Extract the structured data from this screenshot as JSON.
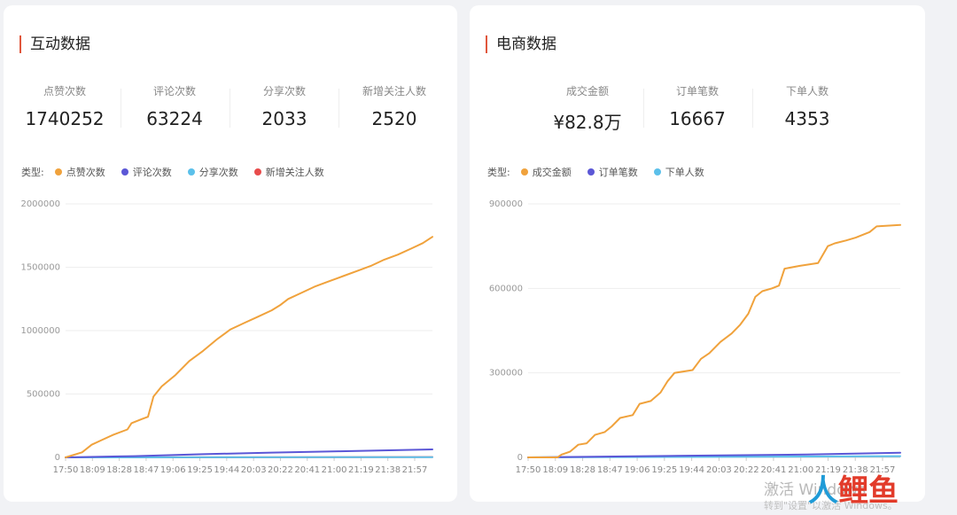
{
  "left_card": {
    "title": "互动数据",
    "stats": [
      {
        "label": "点赞次数",
        "value": "1740252"
      },
      {
        "label": "评论次数",
        "value": "63224"
      },
      {
        "label": "分享次数",
        "value": "2033"
      },
      {
        "label": "新增关注人数",
        "value": "2520"
      }
    ],
    "legend_prefix": "类型:"
  },
  "right_card": {
    "title": "电商数据",
    "stats": [
      {
        "label": "成交金额",
        "value": "¥82.8万"
      },
      {
        "label": "订单笔数",
        "value": "16667"
      },
      {
        "label": "下单人数",
        "value": "4353"
      }
    ],
    "legend_prefix": "类型:"
  },
  "watermark": {
    "line1": "激活 Windows",
    "line2": "转到\"设置\"以激活 Windows。",
    "logo_chars": [
      "人",
      "鲤",
      "鱼"
    ]
  },
  "chart_data": [
    {
      "type": "line",
      "title": "",
      "xlabel": "",
      "ylabel": "",
      "ylim": [
        0,
        2000000
      ],
      "yticks": [
        0,
        500000,
        1000000,
        1500000,
        2000000
      ],
      "x_tick_labels": [
        "17:50",
        "18:09",
        "18:28",
        "18:47",
        "19:06",
        "19:25",
        "19:44",
        "20:03",
        "20:22",
        "20:41",
        "21:00",
        "21:19",
        "21:38",
        "21:57"
      ],
      "x_range_minutes": [
        0,
        267
      ],
      "grid": true,
      "legend_position": "top-left",
      "series": [
        {
          "name": "点赞次数",
          "color": "#f0a23c",
          "points": [
            [
              0,
              0
            ],
            [
              12,
              40000
            ],
            [
              19,
              100000
            ],
            [
              25,
              130000
            ],
            [
              35,
              180000
            ],
            [
              45,
              220000
            ],
            [
              48,
              270000
            ],
            [
              55,
              300000
            ],
            [
              60,
              320000
            ],
            [
              64,
              480000
            ],
            [
              70,
              560000
            ],
            [
              80,
              650000
            ],
            [
              90,
              760000
            ],
            [
              100,
              840000
            ],
            [
              110,
              930000
            ],
            [
              120,
              1010000
            ],
            [
              130,
              1060000
            ],
            [
              140,
              1110000
            ],
            [
              150,
              1160000
            ],
            [
              156,
              1200000
            ],
            [
              162,
              1250000
            ],
            [
              172,
              1300000
            ],
            [
              182,
              1350000
            ],
            [
              192,
              1390000
            ],
            [
              202,
              1430000
            ],
            [
              212,
              1470000
            ],
            [
              222,
              1510000
            ],
            [
              232,
              1560000
            ],
            [
              242,
              1600000
            ],
            [
              252,
              1650000
            ],
            [
              260,
              1690000
            ],
            [
              267,
              1740000
            ]
          ]
        },
        {
          "name": "评论次数",
          "color": "#5b57d6",
          "points": [
            [
              0,
              0
            ],
            [
              50,
              10000
            ],
            [
              100,
              25000
            ],
            [
              150,
              38000
            ],
            [
              200,
              48000
            ],
            [
              267,
              63000
            ]
          ]
        },
        {
          "name": "分享次数",
          "color": "#5bc0ea",
          "points": [
            [
              0,
              0
            ],
            [
              100,
              800
            ],
            [
              200,
              1500
            ],
            [
              267,
              2033
            ]
          ]
        },
        {
          "name": "新增关注人数",
          "color": "#e84b4b",
          "points": [
            [
              0,
              0
            ],
            [
              100,
              1000
            ],
            [
              200,
              1900
            ],
            [
              267,
              2520
            ]
          ]
        }
      ]
    },
    {
      "type": "line",
      "title": "",
      "xlabel": "",
      "ylabel": "",
      "ylim": [
        0,
        900000
      ],
      "yticks": [
        0,
        300000,
        600000,
        900000
      ],
      "x_tick_labels": [
        "17:50",
        "18:09",
        "18:28",
        "18:47",
        "19:06",
        "19:25",
        "19:44",
        "20:03",
        "20:22",
        "20:41",
        "21:00",
        "21:19",
        "21:38",
        "21:57"
      ],
      "x_range_minutes": [
        0,
        267
      ],
      "grid": true,
      "legend_position": "top-left",
      "series": [
        {
          "name": "成交金额",
          "color": "#f0a23c",
          "points": [
            [
              0,
              0
            ],
            [
              21,
              0
            ],
            [
              24,
              10000
            ],
            [
              30,
              20000
            ],
            [
              36,
              45000
            ],
            [
              42,
              50000
            ],
            [
              48,
              80000
            ],
            [
              55,
              90000
            ],
            [
              60,
              110000
            ],
            [
              66,
              140000
            ],
            [
              75,
              150000
            ],
            [
              80,
              190000
            ],
            [
              88,
              200000
            ],
            [
              95,
              230000
            ],
            [
              100,
              270000
            ],
            [
              105,
              300000
            ],
            [
              118,
              310000
            ],
            [
              124,
              350000
            ],
            [
              130,
              370000
            ],
            [
              138,
              410000
            ],
            [
              146,
              440000
            ],
            [
              152,
              470000
            ],
            [
              158,
              510000
            ],
            [
              163,
              570000
            ],
            [
              168,
              590000
            ],
            [
              175,
              600000
            ],
            [
              180,
              610000
            ],
            [
              184,
              670000
            ],
            [
              195,
              680000
            ],
            [
              208,
              690000
            ],
            [
              215,
              750000
            ],
            [
              220,
              760000
            ],
            [
              228,
              770000
            ],
            [
              235,
              780000
            ],
            [
              245,
              800000
            ],
            [
              250,
              820000
            ],
            [
              267,
              825000
            ]
          ]
        },
        {
          "name": "订单笔数",
          "color": "#5b57d6",
          "points": [
            [
              0,
              0
            ],
            [
              100,
              5000
            ],
            [
              200,
              10000
            ],
            [
              267,
              16667
            ]
          ]
        },
        {
          "name": "下单人数",
          "color": "#5bc0ea",
          "points": [
            [
              0,
              0
            ],
            [
              100,
              1500
            ],
            [
              200,
              3000
            ],
            [
              267,
              4353
            ]
          ]
        }
      ]
    }
  ]
}
